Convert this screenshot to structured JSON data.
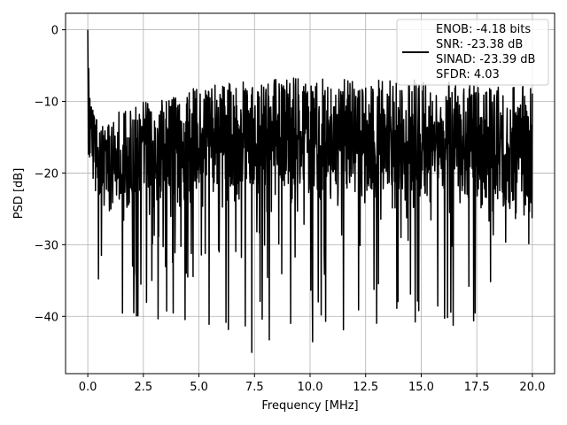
{
  "chart_data": {
    "type": "line",
    "title": "",
    "xlabel": "Frequency [MHz]",
    "ylabel": "PSD [dB]",
    "xlim": [
      -1.0,
      21.0
    ],
    "ylim": [
      -48.0,
      2.3
    ],
    "xticks": [
      0.0,
      2.5,
      5.0,
      7.5,
      10.0,
      12.5,
      15.0,
      17.5,
      20.0
    ],
    "xtick_labels": [
      "0.0",
      "2.5",
      "5.0",
      "7.5",
      "10.0",
      "12.5",
      "15.0",
      "17.5",
      "20.0"
    ],
    "yticks": [
      0,
      -10,
      -20,
      -30,
      -40
    ],
    "ytick_labels": [
      "0",
      "−10",
      "−20",
      "−30",
      "−40"
    ],
    "grid": true,
    "legend_position": "upper-right",
    "legend_lines": [
      "ENOB: -4.18 bits",
      "SNR: -23.38 dB",
      "SINAD: -23.39 dB",
      "SFDR: 4.03"
    ],
    "series": [
      {
        "color": "#000000",
        "x_range": [
          0.0,
          20.0
        ],
        "sample_count": 1500,
        "peak": {
          "x": 0.0,
          "y": 0.0
        },
        "envelope": {
          "x": [
            0.0,
            0.1,
            0.25,
            0.5,
            1.0,
            2.0,
            5.0,
            7.5,
            10.0,
            12.5,
            15.0,
            17.5,
            20.0
          ],
          "y_upper": [
            0.0,
            -9.0,
            -11.5,
            -13.0,
            -12.0,
            -10.5,
            -8.0,
            -7.0,
            -6.5,
            -7.0,
            -7.0,
            -7.5,
            -8.0
          ],
          "y_median": [
            -5.0,
            -13.0,
            -16.0,
            -18.0,
            -18.5,
            -18.0,
            -16.5,
            -15.5,
            -15.0,
            -15.5,
            -15.5,
            -16.0,
            -16.5
          ],
          "y_lower": [
            -15.0,
            -24.0,
            -33.0,
            -38.0,
            -39.0,
            -40.0,
            -41.0,
            -45.5,
            -44.5,
            -41.0,
            -43.0,
            -43.5,
            -30.0
          ]
        }
      }
    ]
  }
}
